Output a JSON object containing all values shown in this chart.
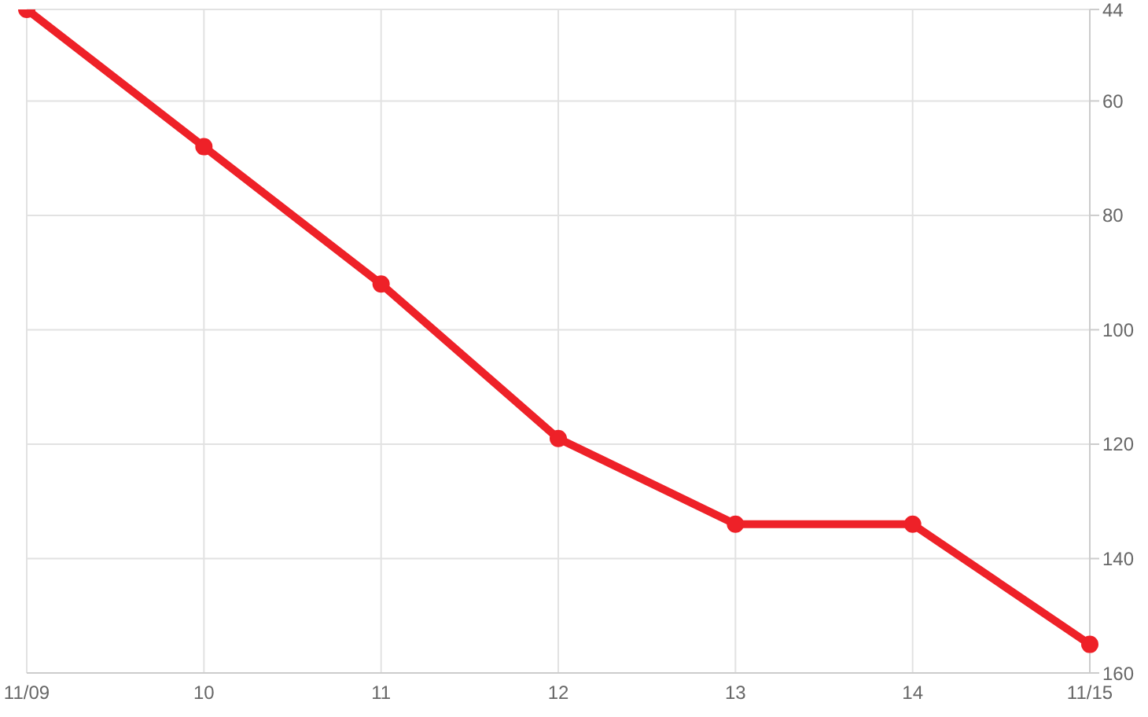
{
  "chart_data": {
    "type": "line",
    "categories": [
      "11/09",
      "10",
      "11",
      "12",
      "13",
      "14",
      "11/15"
    ],
    "series": [
      {
        "color": "#ee2128",
        "values": [
          44,
          68,
          92,
          119,
          134,
          134,
          155
        ]
      }
    ],
    "ylim": [
      160,
      44
    ],
    "yticks": [
      44,
      60,
      80,
      100,
      120,
      140,
      160
    ],
    "grid": true,
    "marker": "circle",
    "line_style": "solid"
  }
}
